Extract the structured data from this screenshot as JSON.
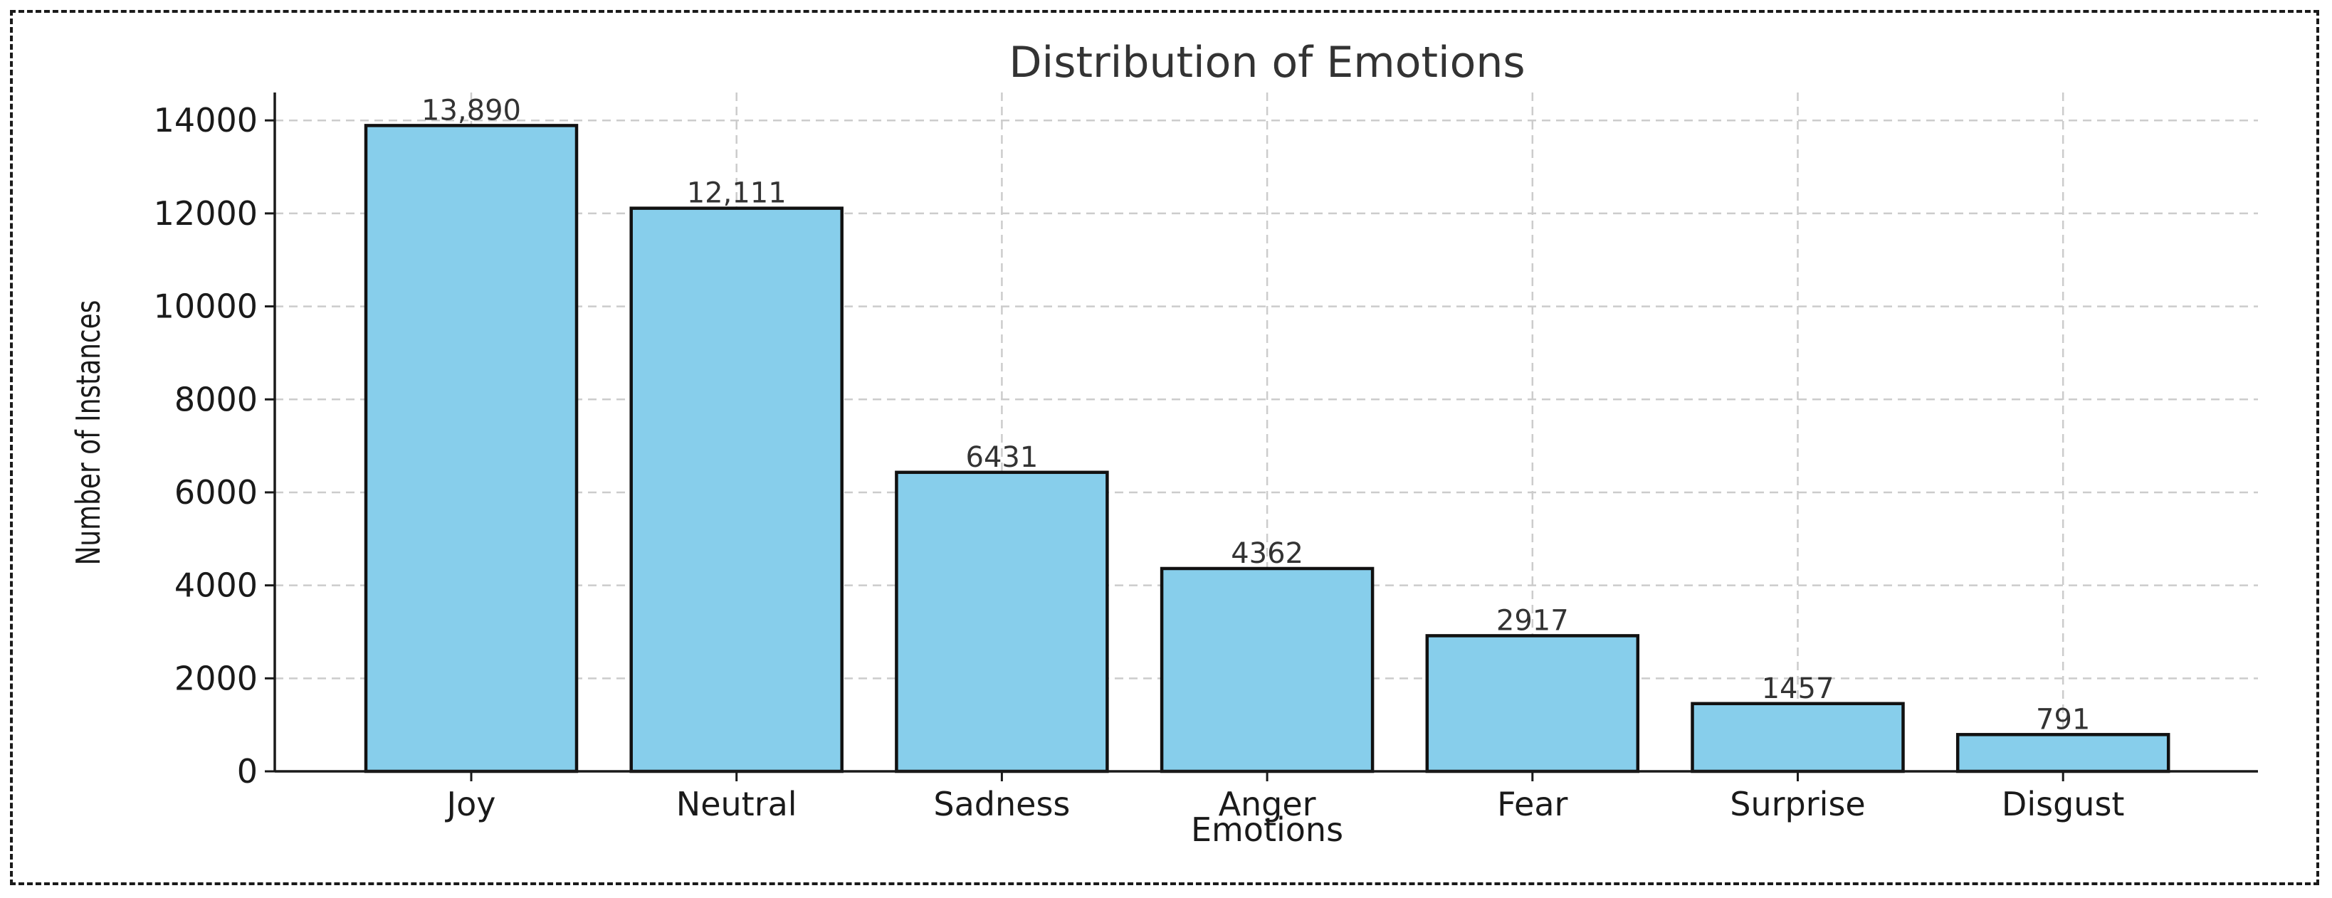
{
  "chart_data": {
    "type": "bar",
    "title": "Distribution of Emotions",
    "xlabel": "Emotions",
    "ylabel": "Number of Instances",
    "categories": [
      "Joy",
      "Neutral",
      "Sadness",
      "Anger",
      "Fear",
      "Surprise",
      "Disgust"
    ],
    "values": [
      13890,
      12111,
      6431,
      4362,
      2917,
      1457,
      791
    ],
    "data_labels": [
      "13,890",
      "12,111",
      "6431",
      "4362",
      "2917",
      "1457",
      "791"
    ],
    "yticks": [
      "0",
      "2000",
      "4000",
      "6000",
      "8000",
      "10000",
      "12000",
      "14000"
    ],
    "ylim": [
      0,
      14600
    ],
    "grid": true,
    "bar_color": "#87CEEB",
    "edge_color": "#111111"
  }
}
